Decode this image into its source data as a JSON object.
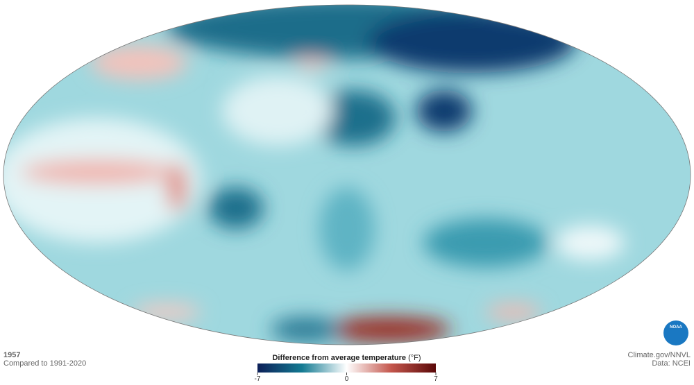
{
  "header": {
    "year": "1957",
    "baseline": "Compared to 1991-2020"
  },
  "legend": {
    "title": "Difference from average temperature",
    "unit": "(°F)",
    "min": -7,
    "max": 7,
    "ticks": [
      -7,
      0,
      7
    ]
  },
  "credits": {
    "source": "Climate.gov/NNVL",
    "data": "Data: NCEI",
    "logo": "NOAA"
  }
}
